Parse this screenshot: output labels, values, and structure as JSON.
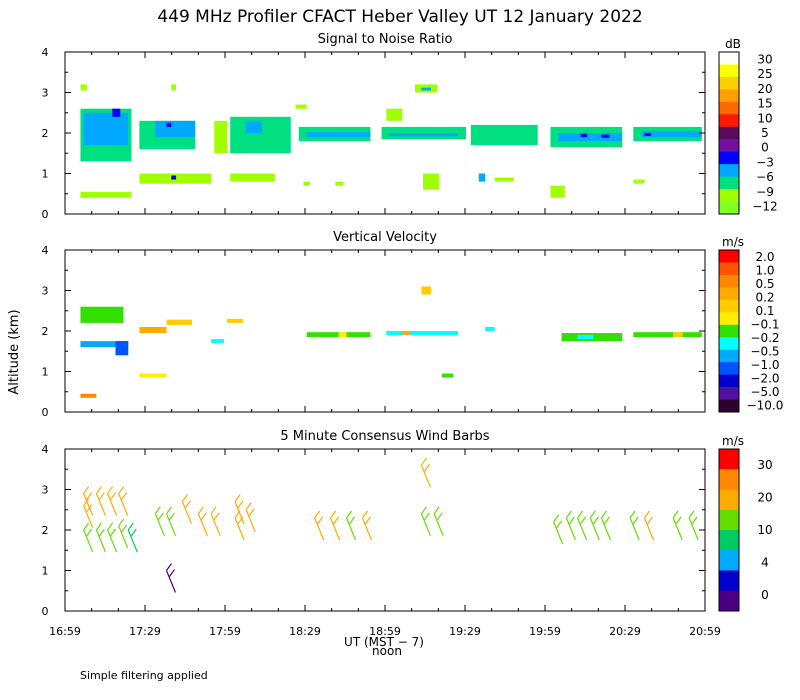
{
  "figure": {
    "title": "449 MHz Profiler CFACT Heber Valley UT 12 January 2022",
    "ylabel": "Altitude (km)",
    "xlabel": "UT  (MST − 7)",
    "noon_label": "noon",
    "footnote": "Simple filtering applied",
    "x_ticks": [
      "16:59",
      "17:29",
      "17:59",
      "18:29",
      "18:59",
      "19:29",
      "19:59",
      "20:29",
      "20:59"
    ]
  },
  "chart_data": [
    {
      "type": "heatmap",
      "title": "Signal to Noise Ratio",
      "units": "dB",
      "xlim": [
        16.983,
        21.0
      ],
      "ylim": [
        0,
        4
      ],
      "y_ticks": [
        "0",
        "1",
        "2",
        "3",
        "4"
      ],
      "colorbar": {
        "labels": [
          "30",
          "25",
          "20",
          "15",
          "10",
          "5",
          "0",
          "−3",
          "−6",
          "−9",
          "−12"
        ],
        "colors": [
          "#ffffff",
          "#ffff00",
          "#ffd000",
          "#ff9f00",
          "#ff6a00",
          "#ff1800",
          "#5a0a5a",
          "#7010a0",
          "#0000ff",
          "#00a8ff",
          "#00e080",
          "#a0ff00",
          "#80ff20"
        ]
      },
      "regions": [
        {
          "t0": 17.08,
          "t1": 17.4,
          "z0": 1.3,
          "z1": 2.6,
          "c": "#00e080"
        },
        {
          "t0": 17.1,
          "t1": 17.38,
          "z0": 1.7,
          "z1": 2.5,
          "c": "#00a8ff"
        },
        {
          "t0": 17.28,
          "t1": 17.33,
          "z0": 2.4,
          "z1": 2.6,
          "c": "#0000ff"
        },
        {
          "t0": 17.08,
          "t1": 17.4,
          "z0": 0.4,
          "z1": 0.55,
          "c": "#a0ff00"
        },
        {
          "t0": 17.08,
          "t1": 17.12,
          "z0": 3.05,
          "z1": 3.2,
          "c": "#a0ff00"
        },
        {
          "t0": 17.45,
          "t1": 17.8,
          "z0": 1.6,
          "z1": 2.3,
          "c": "#00e080"
        },
        {
          "t0": 17.55,
          "t1": 17.8,
          "z0": 1.9,
          "z1": 2.3,
          "c": "#00a8ff"
        },
        {
          "t0": 17.62,
          "t1": 17.65,
          "z0": 2.15,
          "z1": 2.25,
          "c": "#0000ff"
        },
        {
          "t0": 17.45,
          "t1": 17.9,
          "z0": 0.75,
          "z1": 1.0,
          "c": "#a0ff00"
        },
        {
          "t0": 17.65,
          "t1": 17.68,
          "z0": 0.85,
          "z1": 0.95,
          "c": "#0000ff"
        },
        {
          "t0": 17.65,
          "t1": 17.68,
          "z0": 3.05,
          "z1": 3.2,
          "c": "#a0ff00"
        },
        {
          "t0": 17.92,
          "t1": 18.0,
          "z0": 1.5,
          "z1": 2.3,
          "c": "#a0ff00"
        },
        {
          "t0": 18.02,
          "t1": 18.4,
          "z0": 1.5,
          "z1": 2.4,
          "c": "#00e080"
        },
        {
          "t0": 18.12,
          "t1": 18.22,
          "z0": 2.0,
          "z1": 2.3,
          "c": "#00a8ff"
        },
        {
          "t0": 18.02,
          "t1": 18.3,
          "z0": 0.8,
          "z1": 1.0,
          "c": "#a0ff00"
        },
        {
          "t0": 18.43,
          "t1": 18.5,
          "z0": 2.6,
          "z1": 2.7,
          "c": "#a0ff00"
        },
        {
          "t0": 18.45,
          "t1": 18.9,
          "z0": 1.8,
          "z1": 2.15,
          "c": "#00e080"
        },
        {
          "t0": 18.5,
          "t1": 18.9,
          "z0": 1.9,
          "z1": 2.02,
          "c": "#00a8ff"
        },
        {
          "t0": 18.48,
          "t1": 18.52,
          "z0": 0.7,
          "z1": 0.8,
          "c": "#a0ff00"
        },
        {
          "t0": 18.68,
          "t1": 18.73,
          "z0": 0.7,
          "z1": 0.8,
          "c": "#a0ff00"
        },
        {
          "t0": 18.97,
          "t1": 19.5,
          "z0": 1.85,
          "z1": 2.15,
          "c": "#00e080"
        },
        {
          "t0": 19.02,
          "t1": 19.45,
          "z0": 1.92,
          "z1": 2.0,
          "c": "#00a8ff"
        },
        {
          "t0": 19.0,
          "t1": 19.1,
          "z0": 2.3,
          "z1": 2.6,
          "c": "#a0ff00"
        },
        {
          "t0": 19.18,
          "t1": 19.32,
          "z0": 3.0,
          "z1": 3.2,
          "c": "#a0ff00"
        },
        {
          "t0": 19.22,
          "t1": 19.28,
          "z0": 3.05,
          "z1": 3.12,
          "c": "#00a8ff"
        },
        {
          "t0": 19.23,
          "t1": 19.33,
          "z0": 0.6,
          "z1": 1.0,
          "c": "#a0ff00"
        },
        {
          "t0": 19.53,
          "t1": 19.95,
          "z0": 1.7,
          "z1": 2.2,
          "c": "#00e080"
        },
        {
          "t0": 19.58,
          "t1": 19.62,
          "z0": 0.8,
          "z1": 1.0,
          "c": "#00a8ff"
        },
        {
          "t0": 19.68,
          "t1": 19.8,
          "z0": 0.8,
          "z1": 0.9,
          "c": "#a0ff00"
        },
        {
          "t0": 20.03,
          "t1": 20.48,
          "z0": 1.65,
          "z1": 2.15,
          "c": "#00e080"
        },
        {
          "t0": 20.08,
          "t1": 20.48,
          "z0": 1.8,
          "z1": 2.0,
          "c": "#00a8ff"
        },
        {
          "t0": 20.22,
          "t1": 20.26,
          "z0": 1.9,
          "z1": 1.98,
          "c": "#0000ff"
        },
        {
          "t0": 20.35,
          "t1": 20.4,
          "z0": 1.88,
          "z1": 1.96,
          "c": "#0000ff"
        },
        {
          "t0": 20.03,
          "t1": 20.12,
          "z0": 0.4,
          "z1": 0.7,
          "c": "#a0ff00"
        },
        {
          "t0": 20.55,
          "t1": 20.98,
          "z0": 1.8,
          "z1": 2.15,
          "c": "#00e080"
        },
        {
          "t0": 20.6,
          "t1": 20.98,
          "z0": 1.9,
          "z1": 2.05,
          "c": "#00a8ff"
        },
        {
          "t0": 20.62,
          "t1": 20.66,
          "z0": 1.93,
          "z1": 2.0,
          "c": "#0000ff"
        },
        {
          "t0": 20.55,
          "t1": 20.62,
          "z0": 0.75,
          "z1": 0.85,
          "c": "#a0ff00"
        }
      ]
    },
    {
      "type": "heatmap",
      "title": "Vertical Velocity",
      "units": "m/s",
      "xlim": [
        16.983,
        21.0
      ],
      "ylim": [
        0,
        4
      ],
      "y_ticks": [
        "0",
        "1",
        "2",
        "3",
        "4"
      ],
      "colorbar": {
        "labels": [
          "2.0",
          "1.0",
          "0.5",
          "0.2",
          "0.1",
          "−0.1",
          "−0.2",
          "−0.5",
          "−1.0",
          "−2.0",
          "−5.0",
          "−10.0"
        ],
        "colors": [
          "#ff0000",
          "#ff5500",
          "#ff8800",
          "#ffaa00",
          "#ffcc00",
          "#ffee00",
          "#30e000",
          "#00ffff",
          "#00aaff",
          "#0055ff",
          "#0000cc",
          "#5010a0",
          "#300030"
        ]
      },
      "regions": [
        {
          "t0": 17.08,
          "t1": 17.35,
          "z0": 2.2,
          "z1": 2.6,
          "c": "#30e000"
        },
        {
          "t0": 17.08,
          "t1": 17.38,
          "z0": 1.6,
          "z1": 1.75,
          "c": "#00aaff"
        },
        {
          "t0": 17.3,
          "t1": 17.38,
          "z0": 1.4,
          "z1": 1.75,
          "c": "#0055ff"
        },
        {
          "t0": 17.08,
          "t1": 17.18,
          "z0": 0.35,
          "z1": 0.45,
          "c": "#ff8800"
        },
        {
          "t0": 17.45,
          "t1": 17.62,
          "z0": 1.95,
          "z1": 2.1,
          "c": "#ffaa00"
        },
        {
          "t0": 17.62,
          "t1": 17.78,
          "z0": 2.15,
          "z1": 2.28,
          "c": "#ffcc00"
        },
        {
          "t0": 17.45,
          "t1": 17.62,
          "z0": 0.85,
          "z1": 0.95,
          "c": "#ffee00"
        },
        {
          "t0": 17.9,
          "t1": 17.98,
          "z0": 1.7,
          "z1": 1.8,
          "c": "#00ffff"
        },
        {
          "t0": 18.0,
          "t1": 18.1,
          "z0": 2.2,
          "z1": 2.3,
          "c": "#ffcc00"
        },
        {
          "t0": 18.5,
          "t1": 18.9,
          "z0": 1.85,
          "z1": 1.97,
          "c": "#30e000"
        },
        {
          "t0": 18.7,
          "t1": 18.75,
          "z0": 1.85,
          "z1": 1.97,
          "c": "#ffee00"
        },
        {
          "t0": 19.0,
          "t1": 19.45,
          "z0": 1.9,
          "z1": 2.0,
          "c": "#00ffff"
        },
        {
          "t0": 19.1,
          "t1": 19.15,
          "z0": 1.9,
          "z1": 2.0,
          "c": "#ffaa00"
        },
        {
          "t0": 19.22,
          "t1": 19.28,
          "z0": 2.9,
          "z1": 3.1,
          "c": "#ffcc00"
        },
        {
          "t0": 19.35,
          "t1": 19.42,
          "z0": 0.85,
          "z1": 0.95,
          "c": "#30e000"
        },
        {
          "t0": 19.62,
          "t1": 19.68,
          "z0": 2.0,
          "z1": 2.1,
          "c": "#00ffff"
        },
        {
          "t0": 20.1,
          "t1": 20.48,
          "z0": 1.75,
          "z1": 1.95,
          "c": "#30e000"
        },
        {
          "t0": 20.2,
          "t1": 20.3,
          "z0": 1.8,
          "z1": 1.9,
          "c": "#00ffff"
        },
        {
          "t0": 20.55,
          "t1": 20.98,
          "z0": 1.85,
          "z1": 1.97,
          "c": "#30e000"
        },
        {
          "t0": 20.8,
          "t1": 20.86,
          "z0": 1.85,
          "z1": 1.97,
          "c": "#ffcc00"
        }
      ]
    },
    {
      "type": "wind_barbs",
      "title": "5 Minute Consensus Wind Barbs",
      "units": "m/s",
      "xlim": [
        16.983,
        21.0
      ],
      "ylim": [
        0,
        4
      ],
      "y_ticks": [
        "0",
        "1",
        "2",
        "3",
        "4"
      ],
      "colorbar": {
        "labels": [
          "30",
          "20",
          "10",
          "4",
          "0"
        ],
        "colors": [
          "#ff0000",
          "#ff8800",
          "#ffaa00",
          "#66dd00",
          "#00cc66",
          "#00aaff",
          "#0000cc",
          "#4b0082"
        ]
      },
      "barbs": [
        {
          "t": 17.1,
          "z": 2.9,
          "c": "#ffaa00"
        },
        {
          "t": 17.1,
          "z": 2.6,
          "c": "#ffaa00"
        },
        {
          "t": 17.1,
          "z": 2.0,
          "c": "#66dd00"
        },
        {
          "t": 17.18,
          "z": 2.9,
          "c": "#ffaa00"
        },
        {
          "t": 17.18,
          "z": 2.0,
          "c": "#66dd00"
        },
        {
          "t": 17.25,
          "z": 2.9,
          "c": "#ffaa00"
        },
        {
          "t": 17.25,
          "z": 2.0,
          "c": "#66dd00"
        },
        {
          "t": 17.32,
          "z": 2.9,
          "c": "#ffaa00"
        },
        {
          "t": 17.32,
          "z": 2.1,
          "c": "#66dd00"
        },
        {
          "t": 17.38,
          "z": 2.0,
          "c": "#00cc66"
        },
        {
          "t": 17.55,
          "z": 2.4,
          "c": "#66dd00"
        },
        {
          "t": 17.62,
          "z": 2.4,
          "c": "#66dd00"
        },
        {
          "t": 17.72,
          "z": 2.7,
          "c": "#ffaa00"
        },
        {
          "t": 17.82,
          "z": 2.4,
          "c": "#ffaa00"
        },
        {
          "t": 17.9,
          "z": 2.4,
          "c": "#ffaa00"
        },
        {
          "t": 18.05,
          "z": 2.7,
          "c": "#ffaa00"
        },
        {
          "t": 18.05,
          "z": 2.3,
          "c": "#ffaa00"
        },
        {
          "t": 18.12,
          "z": 2.5,
          "c": "#ffaa00"
        },
        {
          "t": 18.55,
          "z": 2.3,
          "c": "#ffaa00"
        },
        {
          "t": 18.65,
          "z": 2.3,
          "c": "#ffaa00"
        },
        {
          "t": 18.75,
          "z": 2.3,
          "c": "#66dd00"
        },
        {
          "t": 18.85,
          "z": 2.3,
          "c": "#ffaa00"
        },
        {
          "t": 19.22,
          "z": 3.6,
          "c": "#ffaa00"
        },
        {
          "t": 19.22,
          "z": 2.4,
          "c": "#66dd00"
        },
        {
          "t": 19.3,
          "z": 2.4,
          "c": "#66dd00"
        },
        {
          "t": 20.05,
          "z": 2.2,
          "c": "#66dd00"
        },
        {
          "t": 20.13,
          "z": 2.3,
          "c": "#66dd00"
        },
        {
          "t": 20.2,
          "z": 2.3,
          "c": "#66dd00"
        },
        {
          "t": 20.28,
          "z": 2.3,
          "c": "#66dd00"
        },
        {
          "t": 20.35,
          "z": 2.3,
          "c": "#66dd00"
        },
        {
          "t": 20.53,
          "z": 2.3,
          "c": "#66dd00"
        },
        {
          "t": 20.62,
          "z": 2.3,
          "c": "#ffaa00"
        },
        {
          "t": 20.8,
          "z": 2.3,
          "c": "#66dd00"
        },
        {
          "t": 20.9,
          "z": 2.3,
          "c": "#66dd00"
        },
        {
          "t": 17.62,
          "z": 1.0,
          "c": "#4b0082"
        }
      ]
    }
  ]
}
